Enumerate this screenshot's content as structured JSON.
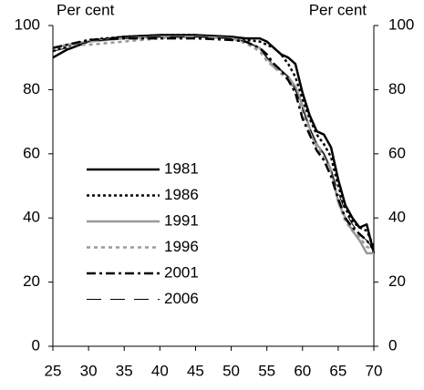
{
  "chart_data": {
    "type": "line",
    "y_label": "Per cent",
    "y2_label": "Per cent",
    "x": [
      25,
      27,
      30,
      35,
      40,
      45,
      50,
      52,
      54,
      55,
      56,
      57,
      58,
      59,
      60,
      61,
      62,
      63,
      64,
      65,
      66,
      67,
      68,
      69,
      70
    ],
    "series": [
      {
        "name": "1981",
        "color": "#000000",
        "width": 2.5,
        "dash": "none",
        "values": [
          90,
          92.5,
          95,
          96.5,
          97,
          97,
          96.5,
          96,
          96,
          95,
          93,
          91,
          90,
          88,
          79,
          72,
          67,
          66,
          62,
          52,
          44,
          40,
          37,
          38,
          29
        ]
      },
      {
        "name": "1986",
        "color": "#000000",
        "width": 2.5,
        "dash": "3,3",
        "values": [
          92,
          93.5,
          95.5,
          96.5,
          97,
          97,
          96,
          95.5,
          95,
          94,
          93,
          91,
          88,
          84,
          77,
          71,
          66,
          63,
          59,
          50,
          43,
          39,
          37,
          36,
          31
        ]
      },
      {
        "name": "1991",
        "color": "#999999",
        "width": 2.5,
        "dash": "none",
        "values": [
          93,
          94,
          95,
          96,
          96.5,
          96.5,
          96,
          95,
          93,
          90,
          87,
          86,
          84,
          81,
          75,
          68,
          63,
          60,
          55,
          45,
          40,
          36,
          33,
          29,
          29
        ]
      },
      {
        "name": "1996",
        "color": "#999999",
        "width": 2.5,
        "dash": "4,4",
        "values": [
          93,
          94,
          94,
          95,
          96,
          96.5,
          96,
          94.5,
          92,
          89,
          87,
          85,
          83,
          80,
          73,
          67,
          62,
          59,
          55,
          45,
          39,
          36,
          34,
          31,
          30
        ]
      },
      {
        "name": "2001",
        "color": "#000000",
        "width": 2.5,
        "dash": "10,4,3,4",
        "values": [
          93,
          94,
          95.5,
          96,
          96,
          96,
          95.5,
          95,
          93,
          91,
          88,
          86,
          83,
          79,
          71,
          66,
          61,
          58,
          53,
          46,
          40,
          37,
          35,
          33,
          30
        ]
      },
      {
        "name": "2006",
        "color": "#000000",
        "width": 1,
        "dash": "16,10",
        "values": [
          92,
          93,
          95,
          96,
          96.5,
          96.5,
          96,
          95,
          93,
          90,
          88,
          86,
          84,
          80,
          74,
          68,
          63,
          60,
          55,
          48,
          42,
          38,
          35,
          33,
          30
        ]
      }
    ],
    "xlim": [
      25,
      70
    ],
    "xticks": [
      25,
      30,
      35,
      40,
      45,
      50,
      55,
      60,
      65,
      70
    ],
    "ylim": [
      0,
      100
    ],
    "yticks": [
      0,
      20,
      40,
      60,
      80,
      100
    ],
    "y2lim": [
      0,
      100
    ],
    "y2ticks": [
      0,
      20,
      40,
      60,
      80,
      100
    ]
  }
}
